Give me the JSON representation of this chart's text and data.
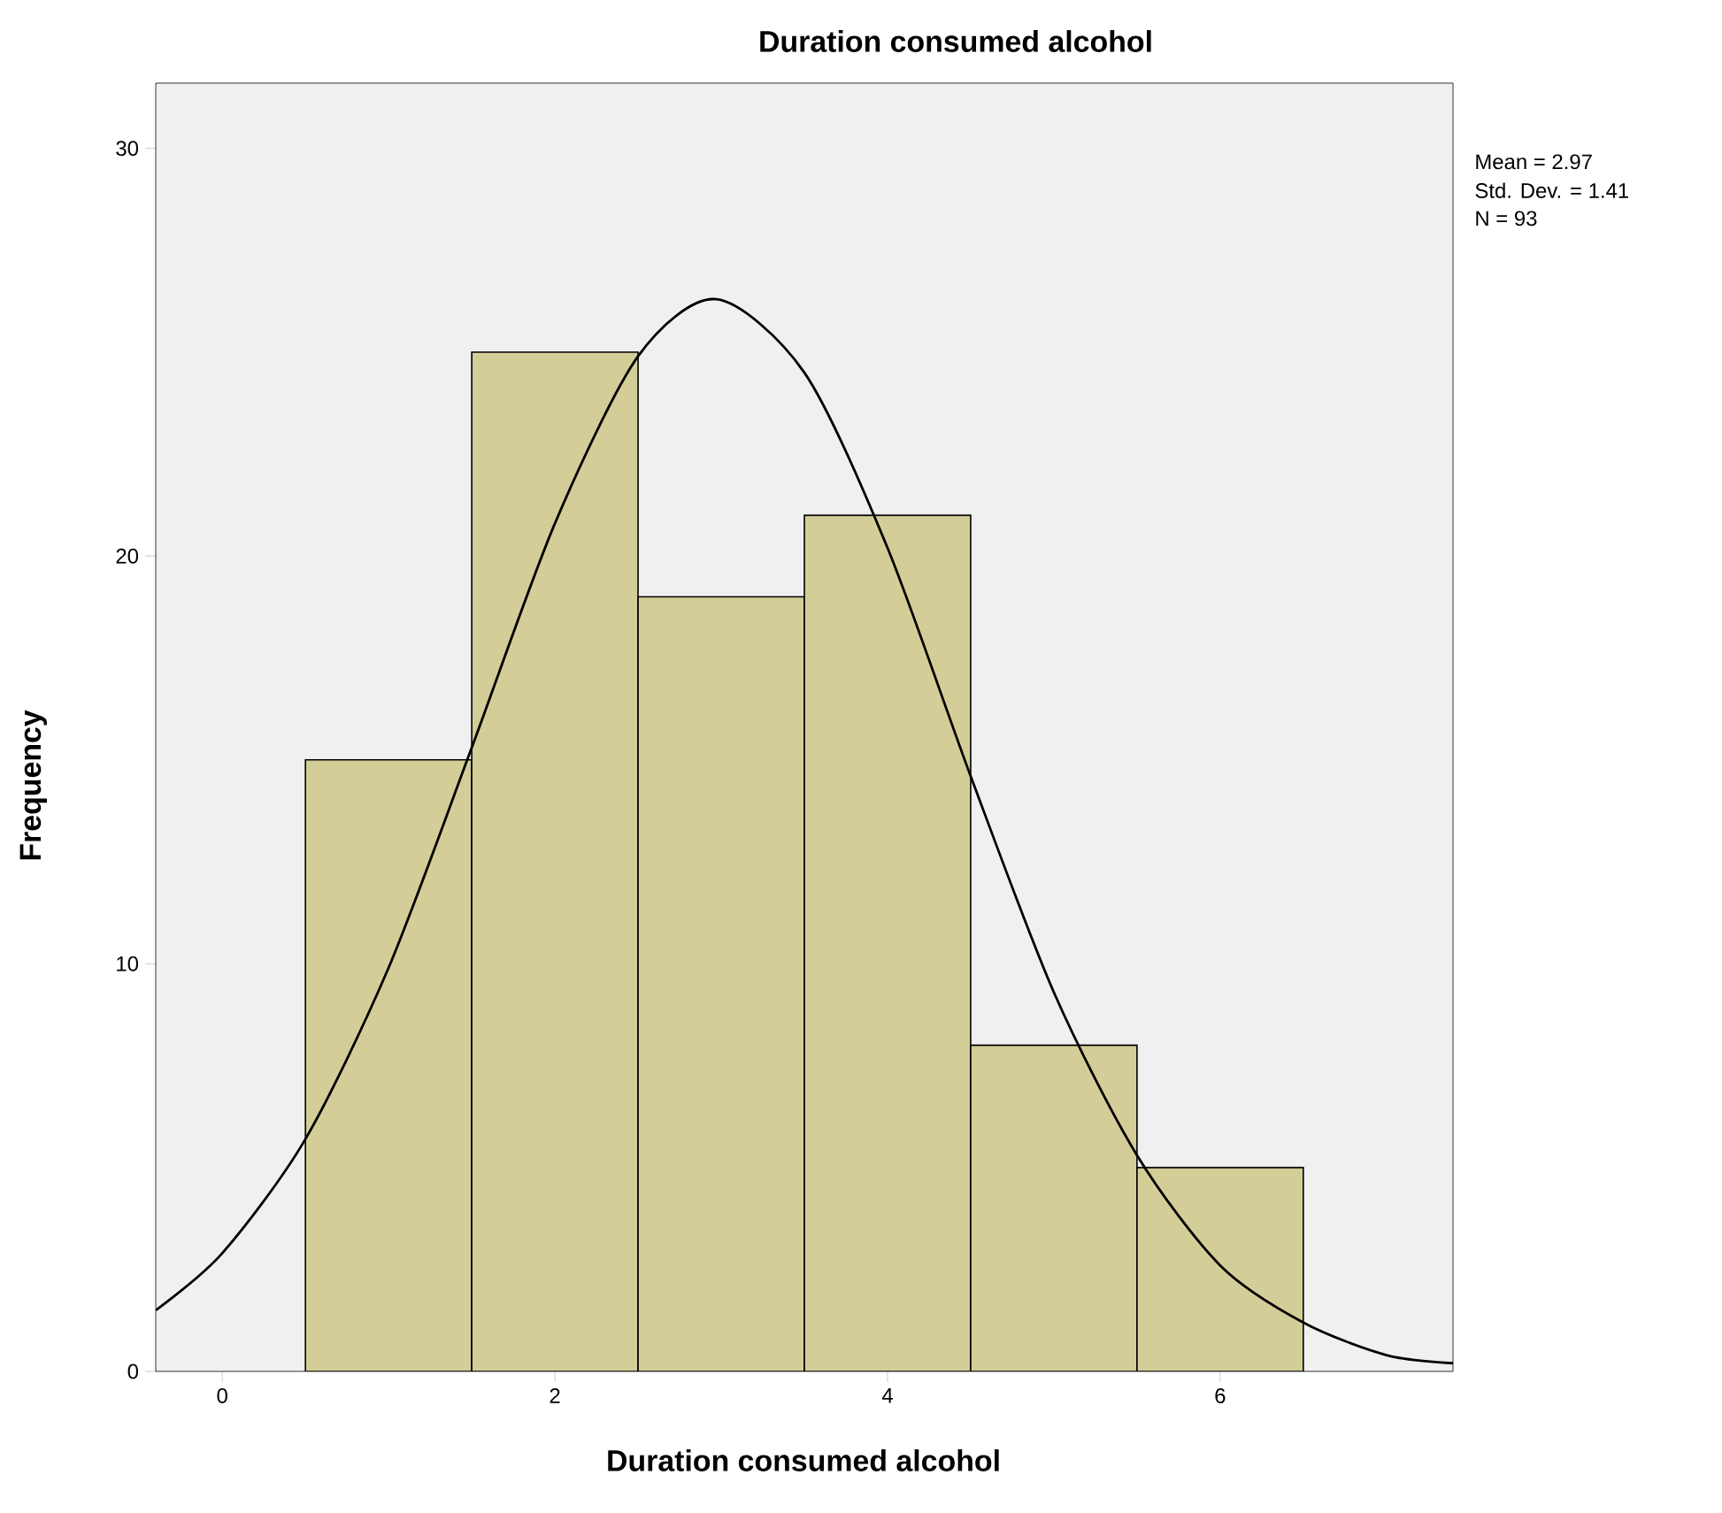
{
  "chart_data": {
    "type": "histogram",
    "title": "Duration consumed alcohol",
    "xlabel": "Duration consumed alcohol",
    "ylabel": "Frequency",
    "bins": [
      0.5,
      1.5,
      2.5,
      3.5,
      4.5,
      5.5,
      6.5
    ],
    "values": [
      15,
      25,
      19,
      21,
      8,
      5
    ],
    "color": "#d3ce97",
    "series": [
      {
        "type": "line",
        "color": "#000000",
        "x": [
          -0.4,
          0,
          0.5,
          1,
          1.5,
          2,
          2.5,
          2.97,
          3.5,
          4,
          4.5,
          5,
          5.5,
          6,
          6.5,
          7,
          7.4
        ],
        "values": [
          1.5,
          2.9,
          5.7,
          9.9,
          15.3,
          20.8,
          24.9,
          26.3,
          24.5,
          20.2,
          14.6,
          9.3,
          5.3,
          2.6,
          1.2,
          0.4,
          0.2
        ]
      }
    ],
    "xlim": [
      -0.4,
      7.4
    ],
    "ylim": [
      0,
      31.6
    ],
    "xticks": [
      0,
      2,
      4,
      6
    ],
    "yticks": [
      0,
      10,
      20,
      30
    ],
    "grid": false,
    "marker": "none",
    "line_style": "solid",
    "annotations": [
      "Mean = 2.97",
      "Std. Dev. = 1.41",
      "N = 93"
    ]
  }
}
